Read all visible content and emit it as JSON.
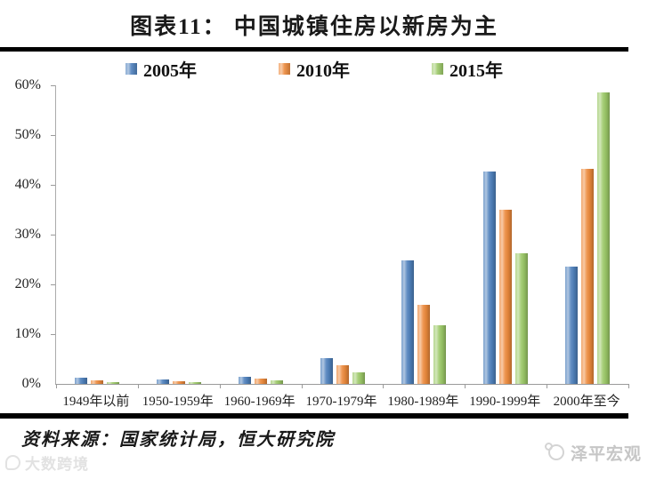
{
  "header": {
    "title": "图表11： 中国城镇住房以新房为主"
  },
  "chart_data": {
    "type": "bar",
    "title": "图表11： 中国城镇住房以新房为主",
    "categories": [
      "1949年以前",
      "1950-1959年",
      "1960-1969年",
      "1970-1979年",
      "1980-1989年",
      "1990-1999年",
      "2000年至今"
    ],
    "series": [
      {
        "name": "2005年",
        "color": "#4f81bd",
        "values": [
          1.3,
          0.9,
          1.4,
          5.1,
          24.9,
          42.7,
          23.6
        ]
      },
      {
        "name": "2010年",
        "color": "#ed8a3c",
        "values": [
          0.7,
          0.5,
          1.0,
          3.7,
          15.9,
          35.0,
          43.3
        ]
      },
      {
        "name": "2015年",
        "color": "#9cc968",
        "values": [
          0.4,
          0.3,
          0.7,
          2.3,
          11.7,
          26.3,
          58.6
        ]
      }
    ],
    "xlabel": "",
    "ylabel": "",
    "ylim": [
      0,
      60
    ],
    "ytick_labels": [
      "0%",
      "10%",
      "20%",
      "30%",
      "40%",
      "50%",
      "60%"
    ],
    "grid": false,
    "legend_position": "top",
    "axis_color": "#9a9a9a"
  },
  "footer": {
    "source": "资料来源：国家统计局，恒大研究院",
    "watermark_left": "大数跨境",
    "watermark_right": "泽平宏观"
  },
  "colors": {
    "rule_black": "#000000",
    "series_blue": "#4f81bd",
    "series_orange": "#ed8a3c",
    "series_green": "#9cc968"
  }
}
